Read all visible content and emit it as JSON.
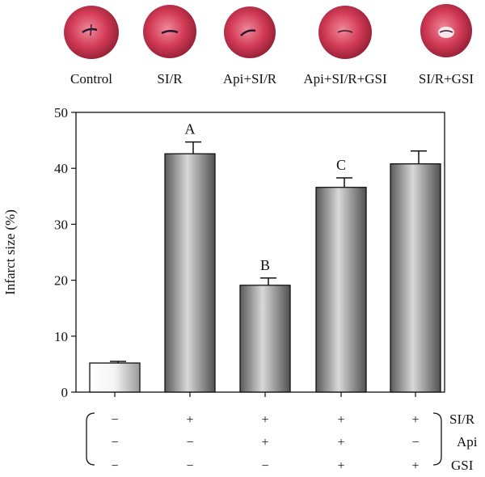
{
  "photo_labels": [
    "Control",
    "SI/R",
    "Api+SI/R",
    "Api+SI/R+GSI",
    "SI/R+GSI"
  ],
  "chart_data": {
    "type": "bar",
    "title": "",
    "xlabel": "",
    "ylabel": "Infarct size (%)",
    "ylim": [
      0,
      50
    ],
    "yticks": [
      0,
      10,
      20,
      30,
      40,
      50
    ],
    "categories": [
      "Control",
      "SI/R",
      "Api+SI/R",
      "Api+SI/R+GSI",
      "SI/R+GSI"
    ],
    "values": [
      5.2,
      42.6,
      19.1,
      36.6,
      40.8
    ],
    "errors": [
      0.3,
      2.1,
      1.3,
      1.7,
      2.3
    ],
    "annotations": [
      "",
      "A",
      "B",
      "C",
      ""
    ],
    "grid": false,
    "bar_fill": "cylindrical gray gradient (first bar white-to-gray)"
  },
  "treatment_table": {
    "rows": [
      {
        "label": "SI/R",
        "signs": [
          "−",
          "+",
          "+",
          "+",
          "+"
        ]
      },
      {
        "label": "Api",
        "signs": [
          "−",
          "−",
          "+",
          "+",
          "−"
        ]
      },
      {
        "label": "GSI",
        "signs": [
          "−",
          "−",
          "−",
          "+",
          "+"
        ]
      }
    ]
  }
}
